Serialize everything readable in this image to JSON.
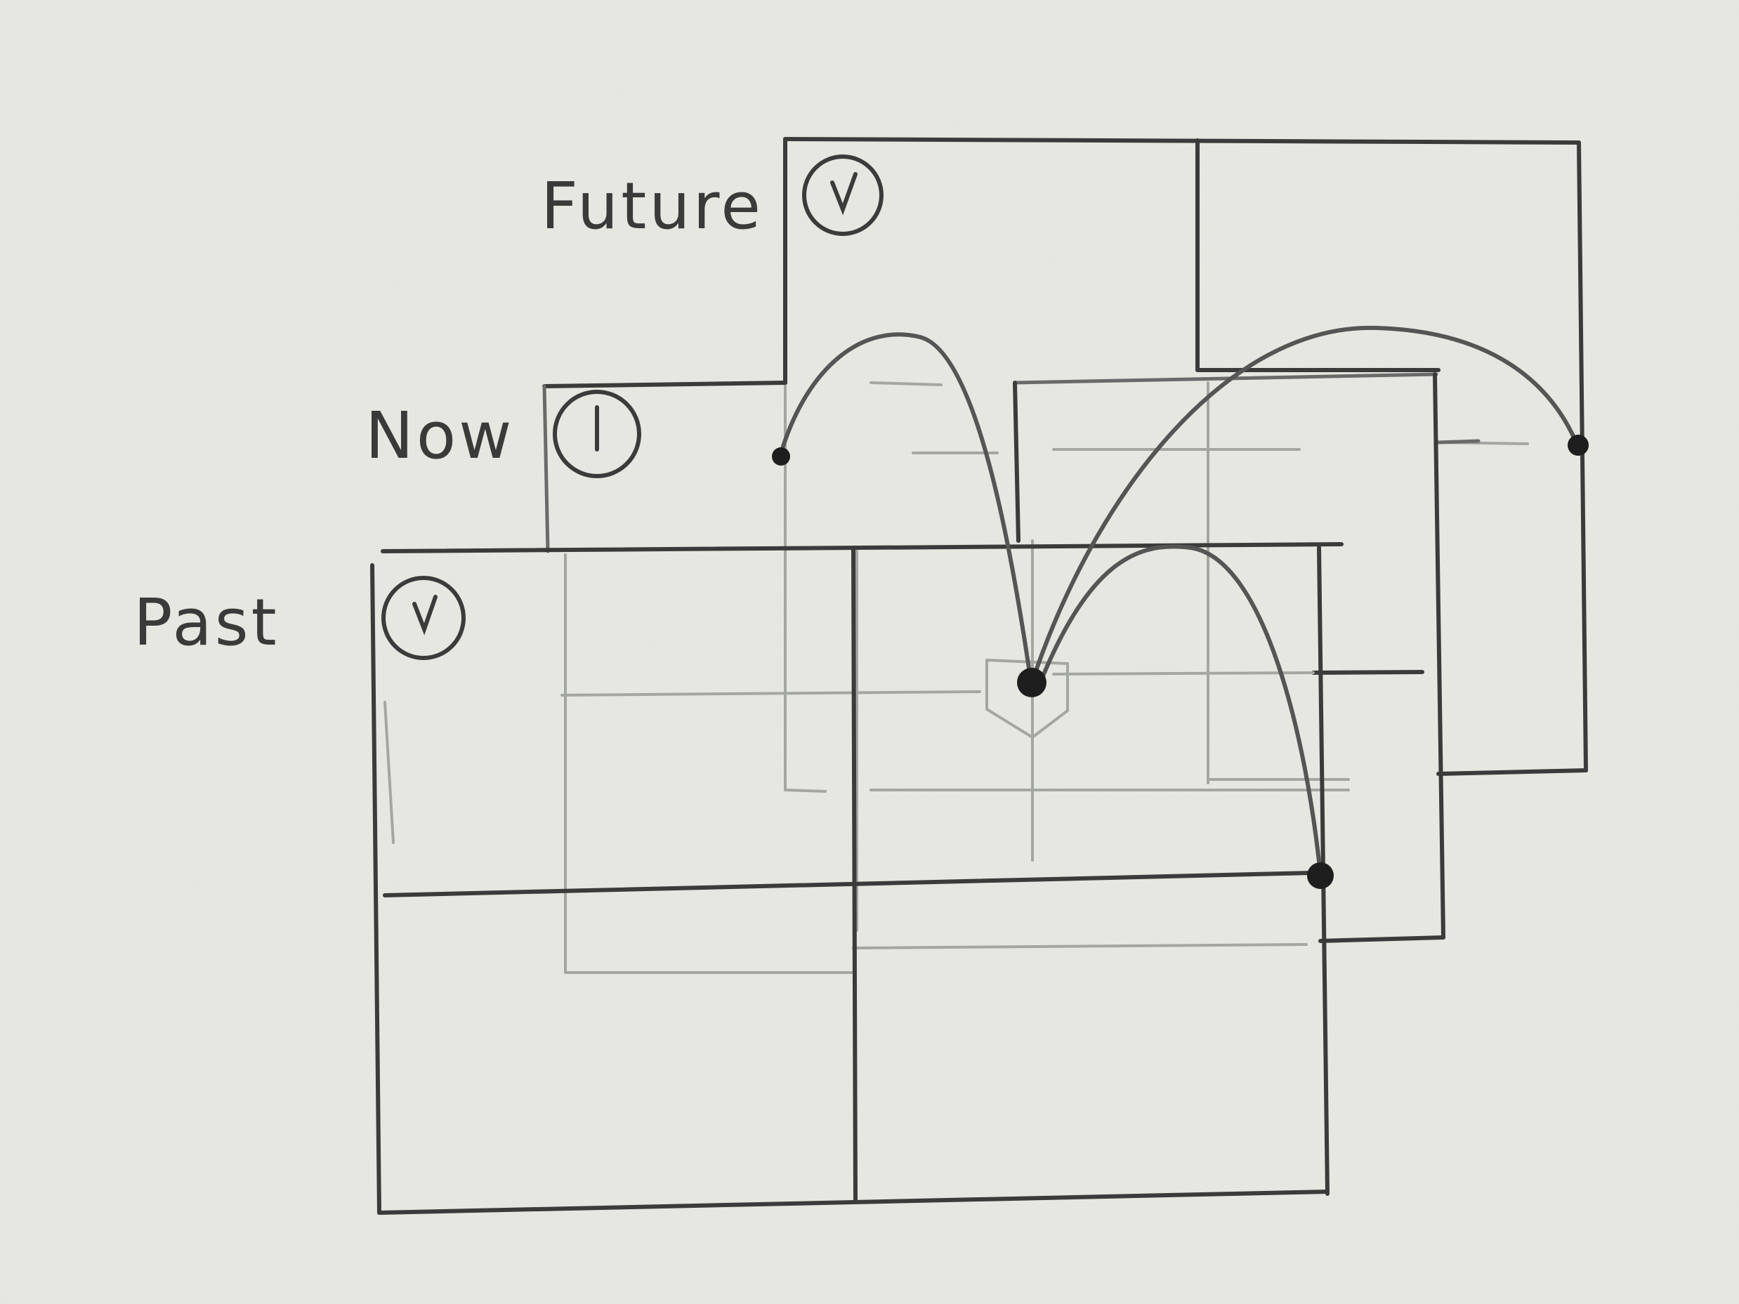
{
  "frames": [
    {
      "id": "future",
      "label": "Future",
      "icon": "check-circle-icon"
    },
    {
      "id": "now",
      "label": "Now",
      "icon": "clock-circle-icon"
    },
    {
      "id": "past",
      "label": "Past",
      "icon": "check-circle-icon"
    }
  ],
  "colors": {
    "paper": "#e6e8e1",
    "pencil_dark": "#3b3b3b",
    "pencil_light": "#a4a6a1",
    "dot": "#1e1e1e"
  }
}
